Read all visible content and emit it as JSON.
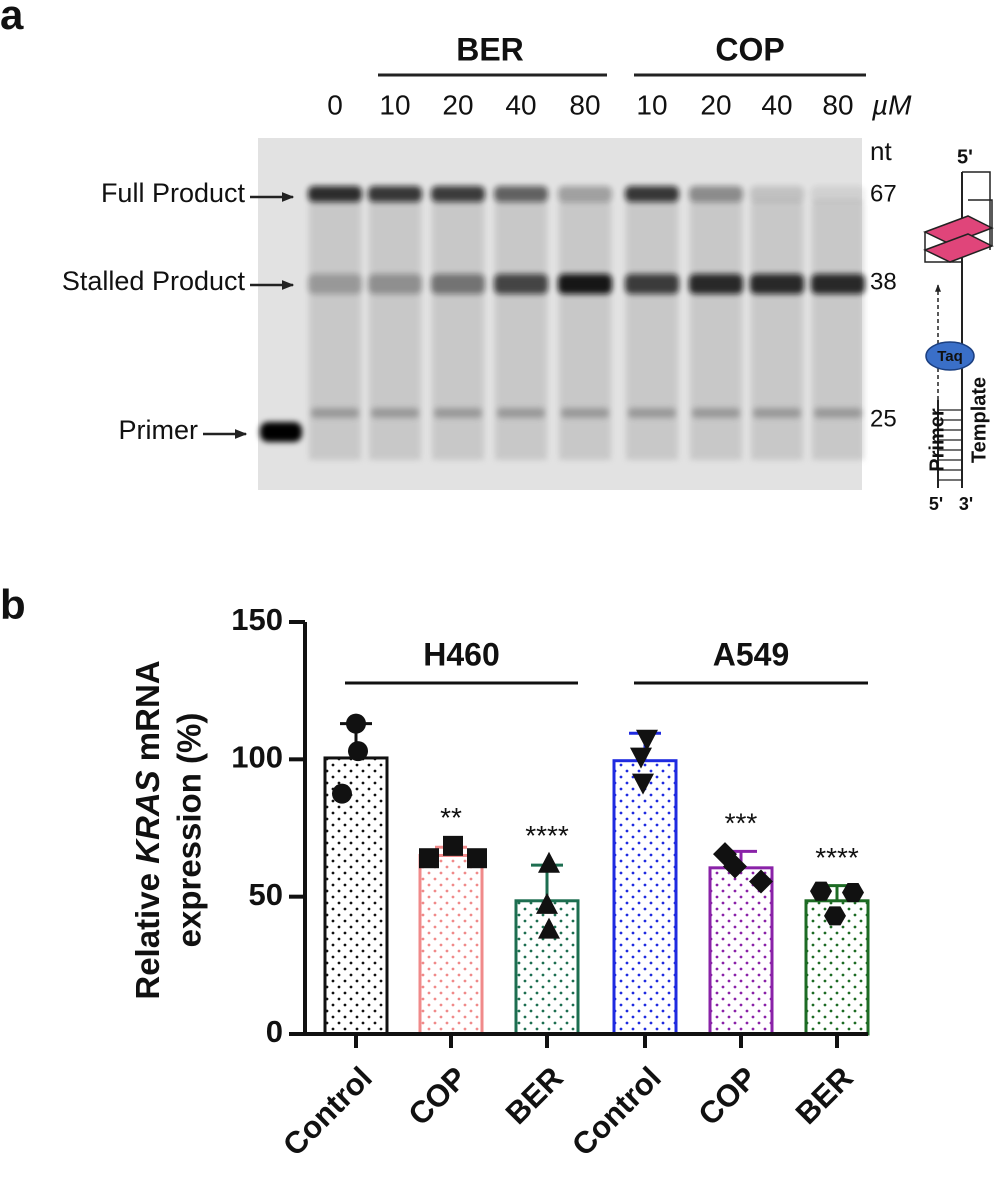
{
  "panel_labels": [
    "a",
    "b"
  ],
  "gel": {
    "groups": [
      "BER",
      "COP"
    ],
    "concentrations": [
      0,
      10,
      20,
      40,
      80,
      10,
      20,
      40,
      80
    ],
    "unit": "µM",
    "size_unit": "nt",
    "sizes": [
      67,
      38,
      25
    ],
    "bands": [
      "Full Product",
      "Stalled Product",
      "Primer"
    ],
    "diagram": {
      "top_end": "5'",
      "enzyme": "Taq",
      "primer": "Primer",
      "template": "Template",
      "primer_end": "5'",
      "template_end": "3'"
    }
  },
  "chart_data": {
    "type": "bar",
    "y_label": {
      "prefix": "Relative",
      "italic": "KRAS",
      "suffix": "mRNA",
      "line2": "expression (%)"
    },
    "ylim": [
      0,
      150
    ],
    "yticks": [
      0,
      50,
      100,
      150
    ],
    "groups": [
      {
        "name": "H460",
        "categories": [
          "Control",
          "COP",
          "BER"
        ],
        "values": [
          100.5,
          65,
          48.5
        ],
        "errors": [
          12.5,
          3,
          13
        ],
        "colors": [
          "#111111",
          "#f08a8a",
          "#1d6e50"
        ],
        "markers": [
          "circle",
          "square",
          "triangle-up"
        ],
        "points": [
          [
            113,
            103,
            87.5
          ],
          [
            64,
            68.5,
            64
          ],
          [
            62,
            47,
            38
          ]
        ],
        "significance": [
          null,
          "**",
          "****"
        ]
      },
      {
        "name": "A549",
        "categories": [
          "Control",
          "COP",
          "BER"
        ],
        "values": [
          99.5,
          60.5,
          48.5
        ],
        "errors": [
          10,
          6,
          5.5
        ],
        "colors": [
          "#1f2be0",
          "#8a22a8",
          "#1d6b24"
        ],
        "markers": [
          "triangle-down",
          "diamond",
          "hexagon"
        ],
        "points": [
          [
            107.5,
            101,
            91.5
          ],
          [
            65.5,
            55.5,
            61
          ],
          [
            52,
            43,
            51.5
          ]
        ],
        "significance": [
          null,
          "***",
          "****"
        ]
      }
    ]
  }
}
